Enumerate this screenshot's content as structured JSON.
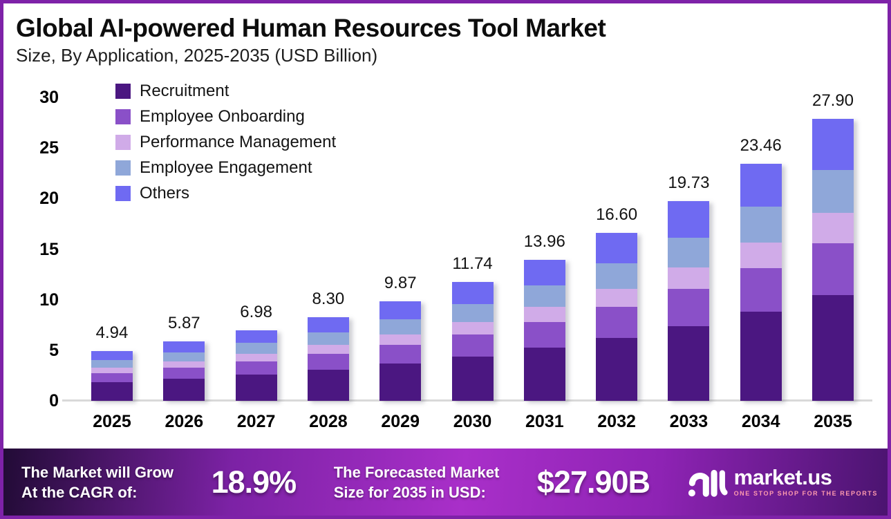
{
  "header": {
    "title": "Global AI-powered Human Resources Tool Market",
    "subtitle": "Size, By Application, 2025-2035 (USD Billion)"
  },
  "chart_data": {
    "type": "bar",
    "stacked": true,
    "title": "Global AI-powered Human Resources Tool Market Size, By Application, 2025-2035 (USD Billion)",
    "categories": [
      "2025",
      "2026",
      "2027",
      "2028",
      "2029",
      "2030",
      "2031",
      "2032",
      "2033",
      "2034",
      "2035"
    ],
    "totals": [
      4.94,
      5.87,
      6.98,
      8.3,
      9.87,
      11.74,
      13.96,
      16.6,
      19.73,
      23.46,
      27.9
    ],
    "total_labels": [
      "4.94",
      "5.87",
      "6.98",
      "8.30",
      "9.87",
      "11.74",
      "13.96",
      "16.60",
      "19.73",
      "23.46",
      "27.90"
    ],
    "series": [
      {
        "name": "Recruitment",
        "color": "#4b1781",
        "values": [
          1.85,
          2.2,
          2.62,
          3.11,
          3.7,
          4.4,
          5.24,
          6.23,
          7.4,
          8.8,
          10.46
        ]
      },
      {
        "name": "Employee Onboarding",
        "color": "#8a50c8",
        "values": [
          0.91,
          1.09,
          1.29,
          1.54,
          1.83,
          2.17,
          2.58,
          3.07,
          3.65,
          4.34,
          5.16
        ]
      },
      {
        "name": "Performance Management",
        "color": "#d0abe8",
        "values": [
          0.53,
          0.63,
          0.75,
          0.89,
          1.06,
          1.26,
          1.49,
          1.78,
          2.11,
          2.51,
          2.99
        ]
      },
      {
        "name": "Employee Engagement",
        "color": "#8fa7d9",
        "values": [
          0.75,
          0.89,
          1.06,
          1.26,
          1.5,
          1.78,
          2.12,
          2.52,
          3.0,
          3.57,
          4.24
        ]
      },
      {
        "name": "Others",
        "color": "#6f6af2",
        "values": [
          0.9,
          1.06,
          1.26,
          1.5,
          1.78,
          2.13,
          2.53,
          3.0,
          3.57,
          4.24,
          5.05
        ]
      }
    ],
    "xlabel": "",
    "ylabel": "",
    "ylim": [
      0,
      30
    ],
    "yticks": [
      0,
      5,
      10,
      15,
      20,
      25,
      30
    ],
    "grid": false,
    "legend_position": "top-left",
    "axis_line_color": "#d9d9d9"
  },
  "banner": {
    "cagr_label": "The Market will Grow\nAt the CAGR of:",
    "cagr_value": "18.9%",
    "forecast_label": "The Forecasted Market\nSize for 2035 in USD:",
    "forecast_value": "$27.90B",
    "logo": {
      "text": "market.us",
      "tagline": "ONE STOP SHOP FOR THE REPORTS"
    },
    "gradient_colors": [
      "#220b36",
      "#a92fc9",
      "#4b1470"
    ]
  },
  "frame": {
    "border_color": "#7e22a8"
  }
}
